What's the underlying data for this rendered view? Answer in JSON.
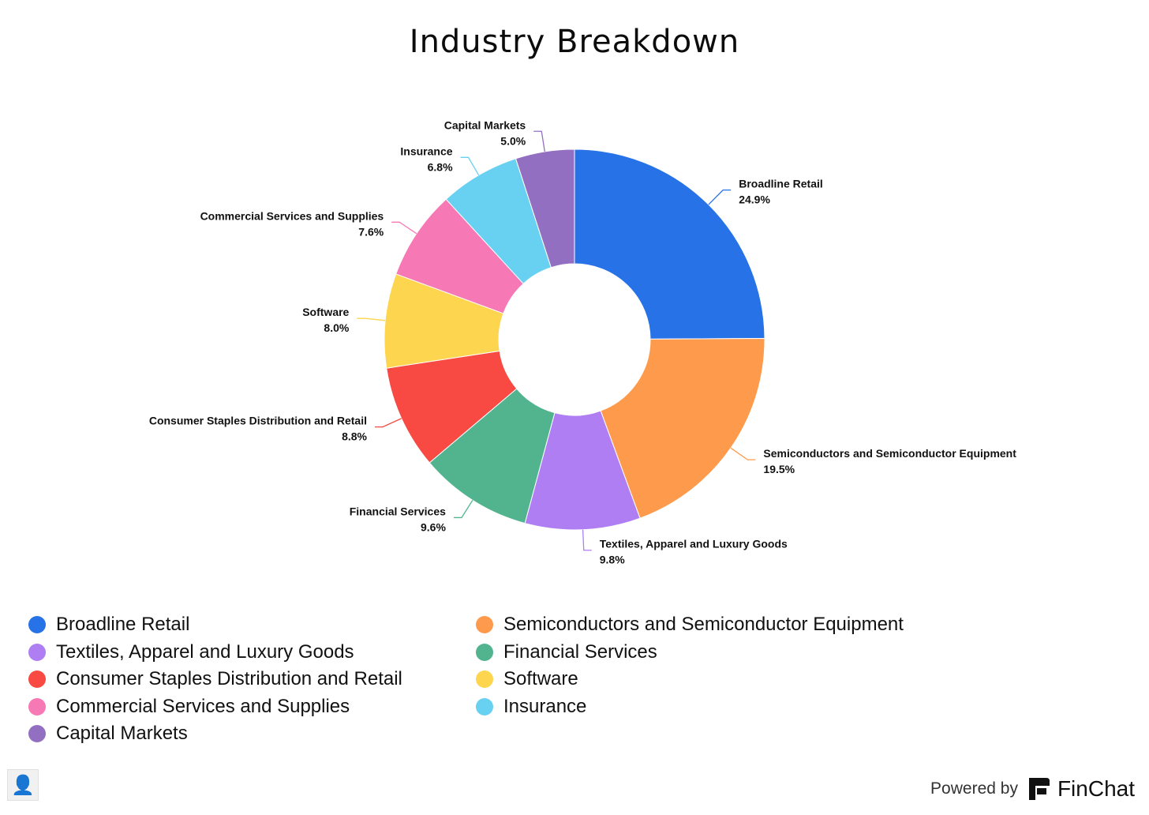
{
  "chart_data": {
    "type": "pie",
    "donut": true,
    "title": "Industry Breakdown",
    "categories": [
      "Broadline Retail",
      "Semiconductors and Semiconductor Equipment",
      "Textiles, Apparel and Luxury Goods",
      "Financial Services",
      "Consumer Staples Distribution and Retail",
      "Software",
      "Commercial Services and Supplies",
      "Insurance",
      "Capital Markets"
    ],
    "values": [
      24.9,
      19.5,
      9.8,
      9.6,
      8.8,
      8.0,
      7.6,
      6.8,
      5.0
    ],
    "value_labels": [
      "24.9%",
      "19.5%",
      "9.8%",
      "9.6%",
      "8.8%",
      "8.0%",
      "7.6%",
      "6.8%",
      "5.0%"
    ],
    "colors": [
      "#2872E8",
      "#FE9A4C",
      "#AE7EF2",
      "#52B48E",
      "#F84A42",
      "#FDD54F",
      "#F678B5",
      "#68D0F1",
      "#936FC1"
    ],
    "legend_position": "bottom"
  },
  "legend": {
    "items": [
      "Broadline Retail",
      "Semiconductors and Semiconductor Equipment",
      "Textiles, Apparel and Luxury Goods",
      "Financial Services",
      "Consumer Staples Distribution and Retail",
      "Software",
      "Commercial Services and Supplies",
      "Insurance",
      "Capital Markets"
    ]
  },
  "footer": {
    "powered_label": "Powered by",
    "brand_name": "FinChat",
    "avatar_icon": "person-portrait-icon",
    "brand_icon": "finchat-logo-icon"
  }
}
